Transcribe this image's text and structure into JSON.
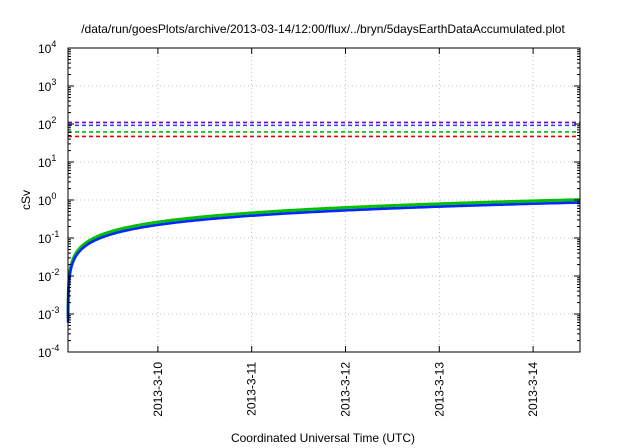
{
  "chart_data": {
    "type": "line",
    "title": "/data/run/goesPlots/archive/2013-03-14/12:00/flux/../bryn/5daysEarthDataAccumulated.plot",
    "xlabel": "Coordinated Universal Time (UTC)",
    "ylabel": "cSv",
    "y_scale": "log",
    "ylim": [
      0.0001,
      10000
    ],
    "xlim": [
      "2013-03-09T01:00",
      "2013-03-14T12:00"
    ],
    "grid": true,
    "y_ticks": [
      {
        "value": 0.0001,
        "base": "10",
        "exp": "-4"
      },
      {
        "value": 0.001,
        "base": "10",
        "exp": "-3"
      },
      {
        "value": 0.01,
        "base": "10",
        "exp": "-2"
      },
      {
        "value": 0.1,
        "base": "10",
        "exp": "-1"
      },
      {
        "value": 1,
        "base": "10",
        "exp": "0"
      },
      {
        "value": 10,
        "base": "10",
        "exp": "1"
      },
      {
        "value": 100,
        "base": "10",
        "exp": "2"
      },
      {
        "value": 1000,
        "base": "10",
        "exp": "3"
      },
      {
        "value": 10000,
        "base": "10",
        "exp": "4"
      }
    ],
    "x_ticks": [
      {
        "value": "2013-03-10T00:00",
        "label": "2013-3-10"
      },
      {
        "value": "2013-03-11T00:00",
        "label": "2013-3-11"
      },
      {
        "value": "2013-03-12T00:00",
        "label": "2013-3-12"
      },
      {
        "value": "2013-03-13T00:00",
        "label": "2013-3-13"
      },
      {
        "value": "2013-03-14T00:00",
        "label": "2013-3-14"
      }
    ],
    "reference_lines": [
      {
        "color": "#8000c0",
        "value": 110
      },
      {
        "color": "#3040ff",
        "value": 92
      },
      {
        "color": "#00c000",
        "value": 62
      },
      {
        "color": "#e00000",
        "value": 47
      }
    ],
    "series": [
      {
        "color": "#00c000",
        "end_value": 1.02,
        "start_value": 0.0008
      },
      {
        "color": "#0028ff",
        "end_value": 0.86,
        "start_value": 0.0006
      }
    ]
  }
}
